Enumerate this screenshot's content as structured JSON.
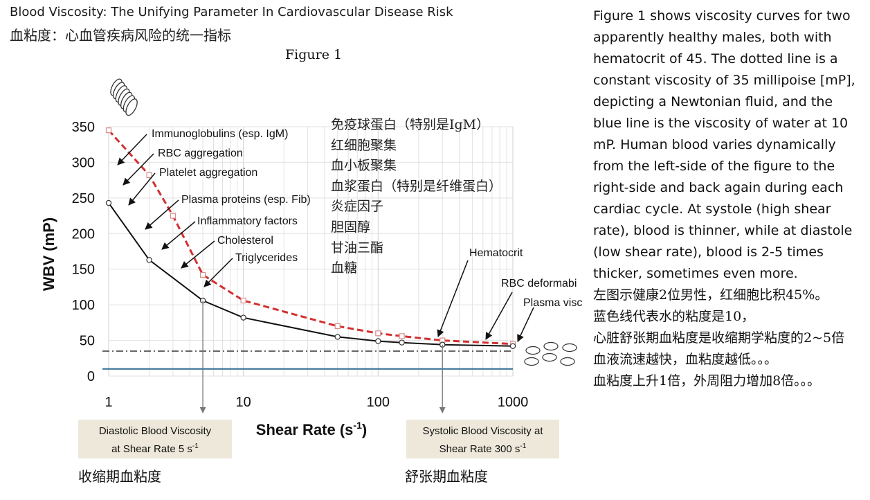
{
  "header": {
    "title": "Blood Viscosity: The Unifying Parameter In Cardiovascular Disease Risk",
    "subtitle": "血粘度：心血管疾病风险的统一指标",
    "figure_label": "Figure 1"
  },
  "chart_data": {
    "type": "line",
    "xscale": "log",
    "xlim": [
      1,
      1000
    ],
    "ylim": [
      0,
      350
    ],
    "xticks": [
      "1",
      "10",
      "100",
      "1000"
    ],
    "yticks": [
      "0",
      "50",
      "100",
      "150",
      "200",
      "250",
      "300",
      "350"
    ],
    "xlabel": "Shear Rate (s",
    "xlabel_sup": "-1",
    "xlabel_end": ")",
    "ylabel": "WBV (mP)",
    "grid": true,
    "series": [
      {
        "style": "red-dashed",
        "color": "#d32f2f",
        "x": [
          1,
          2,
          3,
          5,
          10,
          50,
          100,
          150,
          300,
          1000
        ],
        "y": [
          345,
          282,
          225,
          142,
          106,
          70,
          60,
          56,
          50,
          45
        ]
      },
      {
        "style": "black-solid",
        "color": "#111111",
        "x": [
          1,
          2,
          5,
          10,
          50,
          100,
          150,
          300,
          1000
        ],
        "y": [
          243,
          163,
          106,
          82,
          55,
          49,
          47,
          44,
          42
        ]
      },
      {
        "style": "dash-dot",
        "color": "#333333",
        "x": [
          1,
          1000
        ],
        "y": [
          35,
          35
        ]
      },
      {
        "style": "blue-solid",
        "color": "#2c6c93",
        "x": [
          1,
          1000
        ],
        "y": [
          10,
          10
        ]
      }
    ],
    "annotations": [
      "Immunoglobulins (esp. IgM)",
      "RBC aggregation",
      "Platelet aggregation",
      "Plasma proteins (esp. Fib)",
      "Inflammatory factors",
      "Cholesterol",
      "Triglycerides",
      "Hematocrit",
      "RBC deformabi",
      "Plasma visc"
    ]
  },
  "boxes": {
    "diastolic": {
      "line1": "Diastolic Blood Viscosity",
      "line2": "at Shear Rate 5 s",
      "sup": "-1"
    },
    "systolic": {
      "line1": "Systolic Blood Viscosity at",
      "line2": "Shear Rate 300 s",
      "sup": "-1"
    }
  },
  "captions": {
    "left": "收缩期血粘度",
    "right": "舒张期血粘度"
  },
  "cn_factors": [
    "免疫球蛋白（特别是IgM）",
    "红细胞聚集",
    "血小板聚集",
    "血浆蛋白（特别是纤维蛋白）",
    "炎症因子",
    "胆固醇",
    "甘油三酯",
    "血糖"
  ],
  "side_text": {
    "english": "Figure 1 shows viscosity curves for two apparently healthy males, both with hematocrit of 45. The dotted line is a constant viscosity of 35 millipoise [mP], depicting a Newtonian fluid, and the blue line is the viscosity of water at 10 mP. Human blood varies dynamically from the left-side of the figure to the right-side and back again during each cardiac cycle. At systole (high shear rate), blood is thinner, while at diastole (low shear rate), blood is 2-5 times thicker, sometimes even more.",
    "cn1": "左图示健康2位男性，红细胞比积45%。",
    "cn2": "蓝色线代表水的粘度是10，",
    "cn3": "心脏舒张期血粘度是收缩期学粘度的2~5倍",
    "cn4": "血液流速越快，血粘度越低。。。",
    "cn5": "血粘度上升1倍，外周阻力增加8倍。。。"
  }
}
